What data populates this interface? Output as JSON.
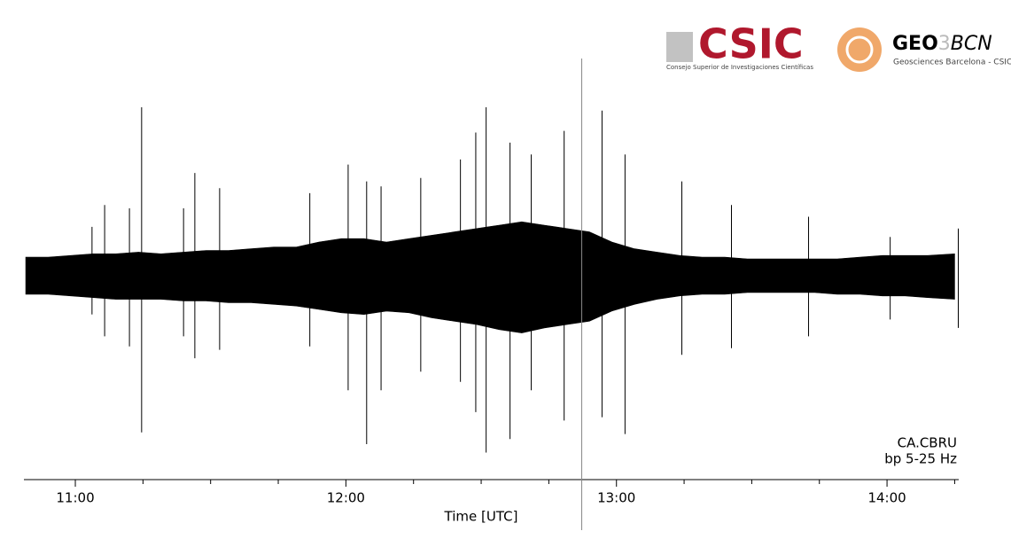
{
  "chart_data": {
    "type": "seismogram",
    "xlabel": "Time [UTC]",
    "station": "CA.CBRU",
    "filter": "bp 5-25 Hz",
    "xlim": [
      648.6,
      855.9
    ],
    "ylim": [
      -1.3,
      1.3
    ],
    "xticks": [
      {
        "value": 660,
        "label": "11:00"
      },
      {
        "value": 720,
        "label": "12:00"
      },
      {
        "value": 780,
        "label": "13:00"
      },
      {
        "value": 840,
        "label": "14:00"
      }
    ],
    "xminorticks": [
      675,
      690,
      705,
      735,
      750,
      765,
      795,
      810,
      825,
      855
    ],
    "color": "#000000",
    "marker_x": 772.3,
    "marker_color": "#888888",
    "band": {
      "x": [
        649,
        654,
        659,
        664,
        669,
        674,
        679,
        684,
        689,
        694,
        699,
        704,
        709,
        714,
        719,
        724,
        729,
        734,
        739,
        744,
        749,
        754,
        759,
        764,
        769,
        774,
        779,
        784,
        789,
        794,
        799,
        804,
        809,
        814,
        819,
        824,
        829,
        834,
        839,
        844,
        849,
        855
      ],
      "max": [
        0.11,
        0.11,
        0.12,
        0.13,
        0.13,
        0.14,
        0.13,
        0.14,
        0.15,
        0.15,
        0.16,
        0.17,
        0.17,
        0.2,
        0.22,
        0.22,
        0.2,
        0.22,
        0.24,
        0.26,
        0.28,
        0.3,
        0.32,
        0.3,
        0.28,
        0.26,
        0.2,
        0.16,
        0.14,
        0.12,
        0.11,
        0.11,
        0.1,
        0.1,
        0.1,
        0.1,
        0.1,
        0.11,
        0.12,
        0.12,
        0.12,
        0.13
      ],
      "min": [
        -0.11,
        -0.11,
        -0.12,
        -0.13,
        -0.14,
        -0.14,
        -0.14,
        -0.15,
        -0.15,
        -0.16,
        -0.16,
        -0.17,
        -0.18,
        -0.2,
        -0.22,
        -0.23,
        -0.21,
        -0.22,
        -0.25,
        -0.27,
        -0.29,
        -0.32,
        -0.34,
        -0.31,
        -0.29,
        -0.27,
        -0.21,
        -0.17,
        -0.14,
        -0.12,
        -0.11,
        -0.11,
        -0.1,
        -0.1,
        -0.1,
        -0.1,
        -0.11,
        -0.11,
        -0.12,
        -0.12,
        -0.13,
        -0.14
      ]
    },
    "spikes": {
      "x": [
        663.7,
        666.5,
        672.0,
        674.7,
        684.0,
        686.5,
        692.0,
        712.0,
        720.5,
        724.6,
        727.8,
        736.6,
        745.4,
        748.8,
        751.1,
        756.4,
        761.1,
        768.4,
        776.8,
        781.9,
        794.5,
        805.5,
        822.6,
        840.7,
        855.8
      ],
      "max": [
        0.29,
        0.42,
        0.4,
        1.0,
        0.4,
        0.61,
        0.52,
        0.49,
        0.66,
        0.56,
        0.53,
        0.58,
        0.69,
        0.85,
        1.0,
        0.79,
        0.72,
        0.86,
        0.98,
        0.72,
        0.56,
        0.42,
        0.35,
        0.23,
        0.28
      ],
      "min": [
        -0.23,
        -0.36,
        -0.42,
        -0.93,
        -0.36,
        -0.49,
        -0.44,
        -0.42,
        -0.68,
        -1.0,
        -0.68,
        -0.57,
        -0.63,
        -0.81,
        -1.05,
        -0.97,
        -0.68,
        -0.86,
        -0.84,
        -0.94,
        -0.47,
        -0.43,
        -0.36,
        -0.26,
        -0.31
      ]
    }
  },
  "logos": {
    "csic": "CSIC",
    "csic_name": "Consejo Superior de Investigaciones Científicas",
    "geo": "GEO",
    "three": "3",
    "bcn": "BCN",
    "geo_name": "Geosciences Barcelona - CSIC"
  }
}
